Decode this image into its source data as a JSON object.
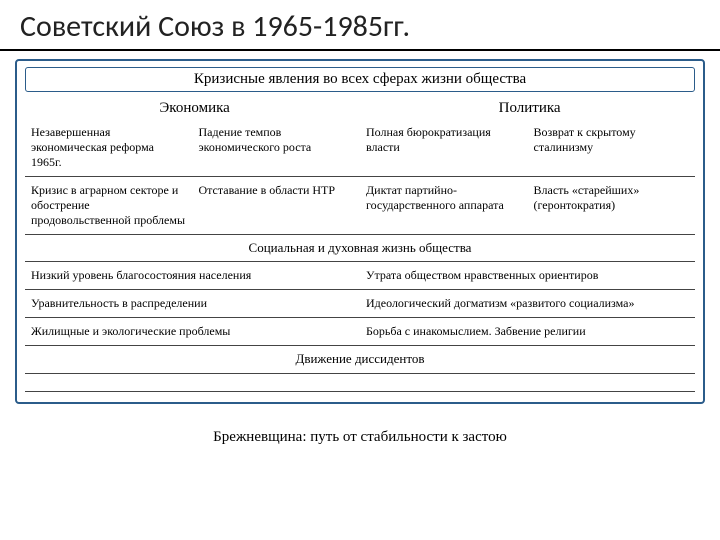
{
  "title": "Советский Союз в 1965-1985гг.",
  "subtitle": "Кризисные явления во всех сферах жизни общества",
  "headers": {
    "left": "Экономика",
    "right": "Политика"
  },
  "row1": {
    "c1": "Незавершенная экономическая реформа 1965г.",
    "c2": "Падение темпов экономического роста",
    "c3": "Полная бюрократизация власти",
    "c4": "Возврат к скрытому сталинизму"
  },
  "row2": {
    "c1": "Кризис в аграрном секторе и обострение продовольственной проблемы",
    "c2": "Отставание в области НТР",
    "c3": "Диктат партийно-государственного аппарата",
    "c4": "Власть «старейших» (геронтократия)"
  },
  "section_header": "Социальная и духовная жизнь общества",
  "srow1": {
    "c1": "Низкий уровень благосостояния населения",
    "c2": "Утрата обществом нравственных  ориентиров"
  },
  "srow2": {
    "c1": "Уравнительность в распределении",
    "c2": "Идеологический догматизм «развитого социализма»"
  },
  "srow3": {
    "c1": "Жилищные и экологические проблемы",
    "c2": "Борьба с инакомыслием. Забвение религии"
  },
  "footer_row": "Движение диссидентов",
  "conclusion": "Брежневщина: путь от стабильности к застою",
  "colors": {
    "border": "#2b5c8a",
    "text": "#222222",
    "background": "#ffffff"
  }
}
